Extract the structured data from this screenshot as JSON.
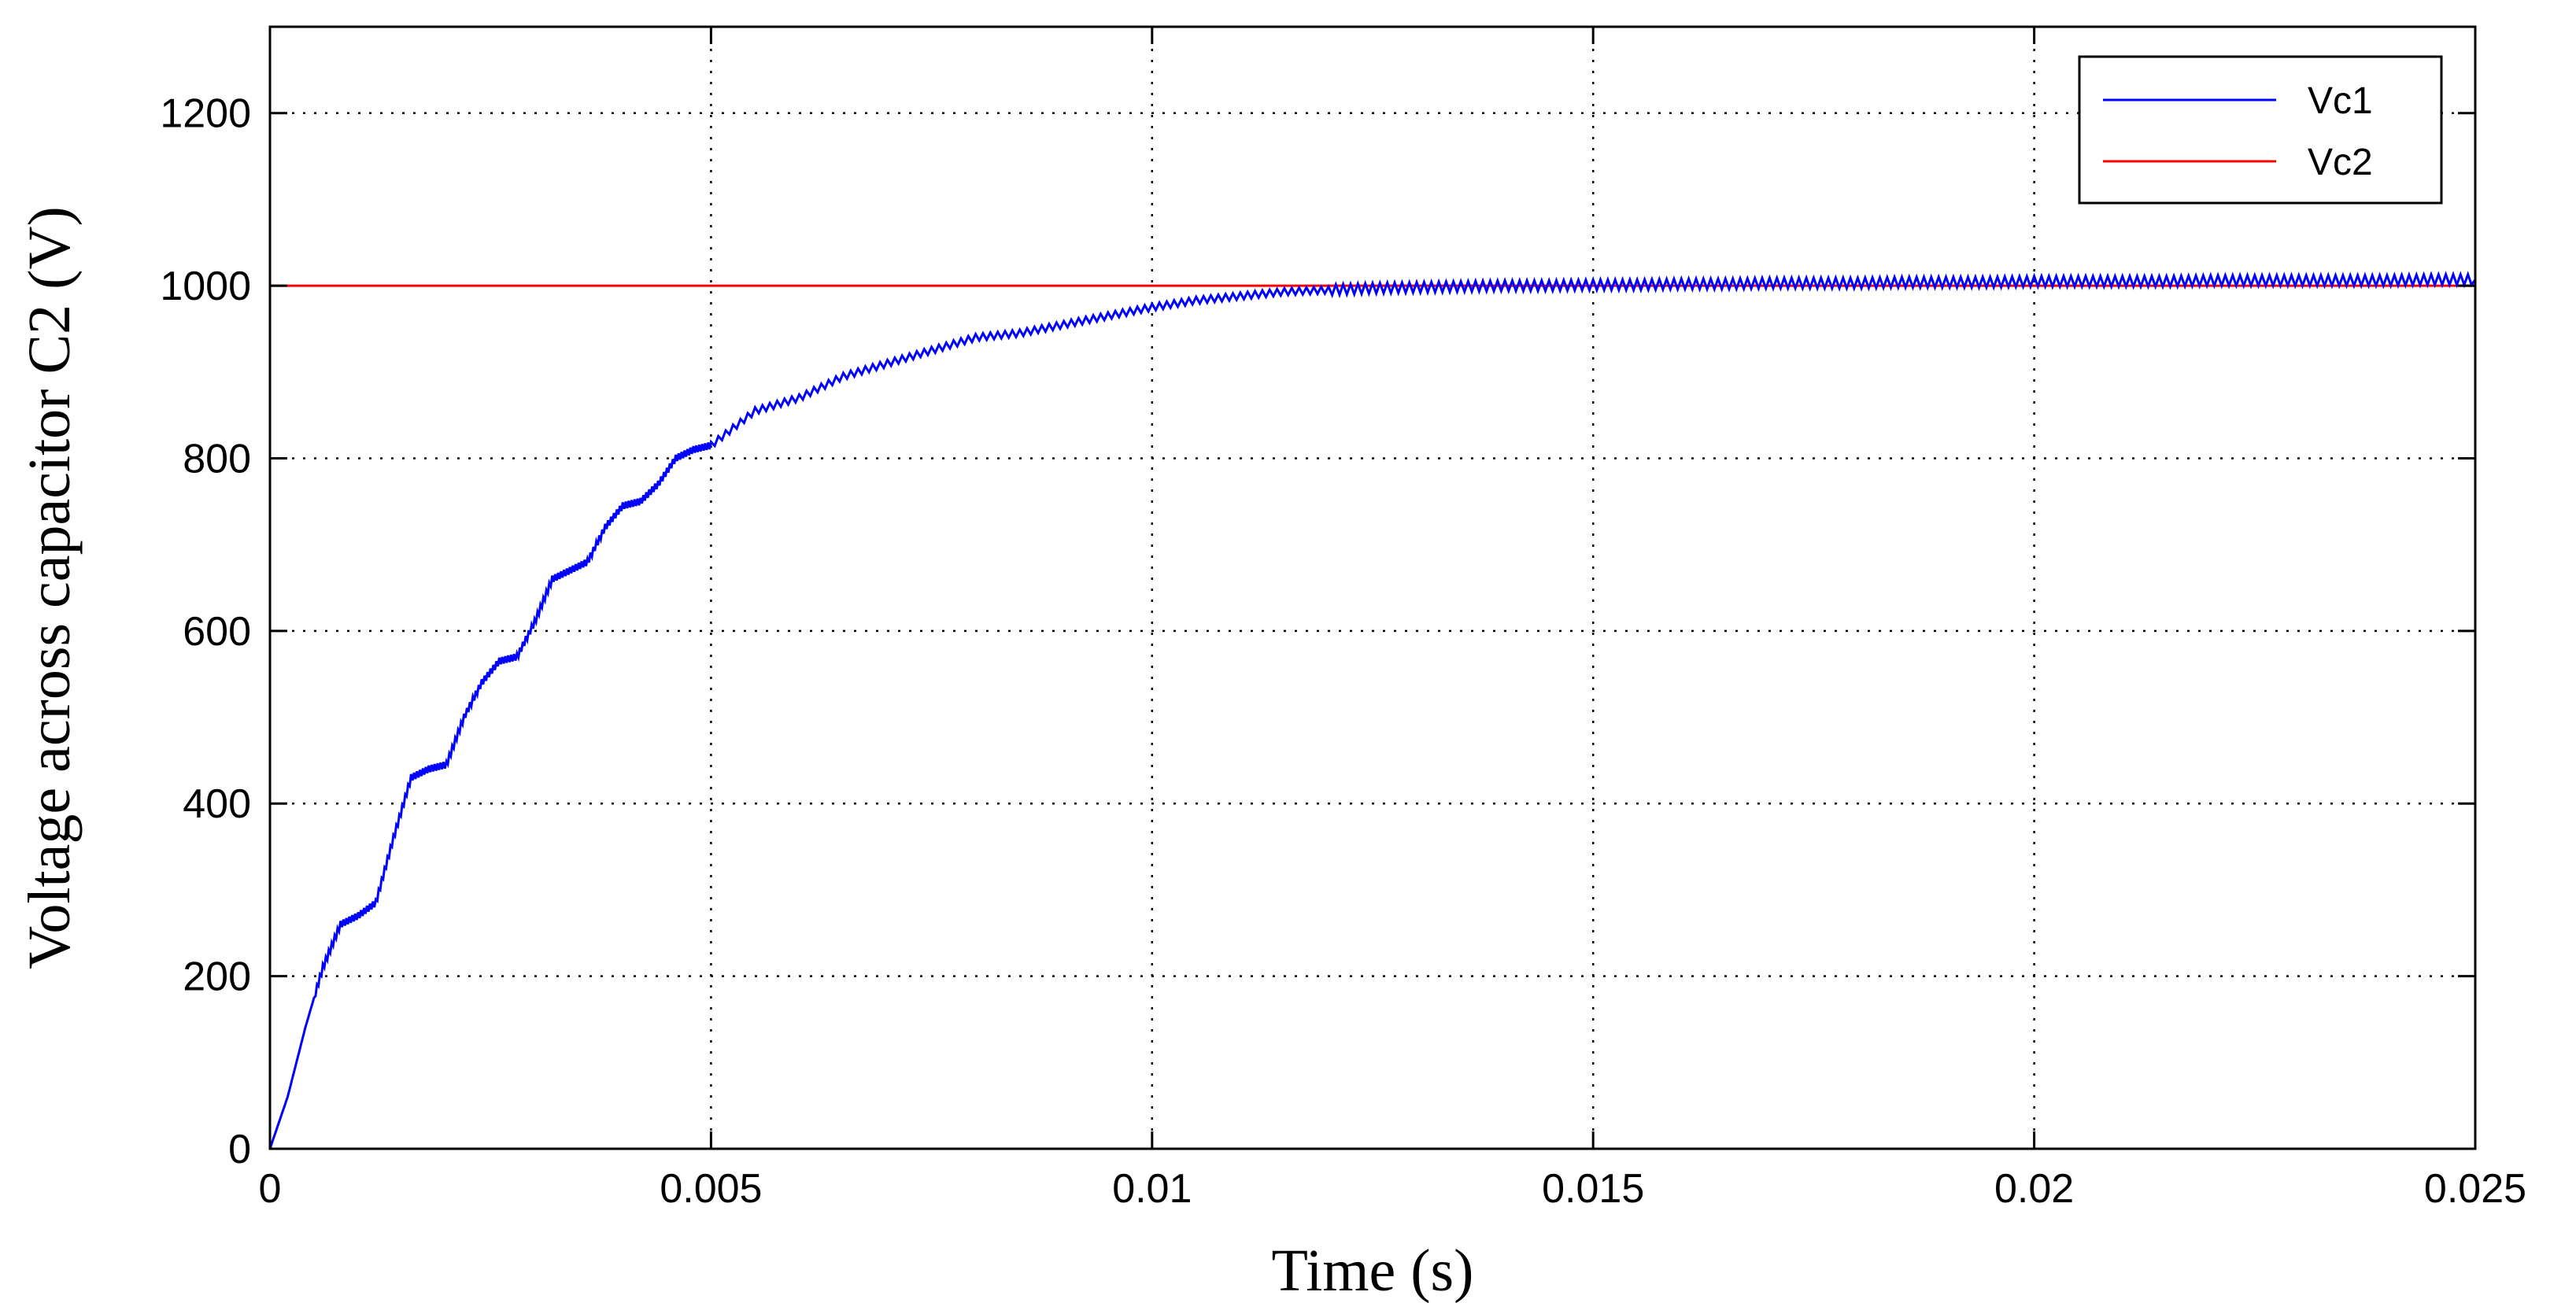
{
  "chart_data": {
    "type": "line",
    "title": "",
    "xlabel": "Time (s)",
    "ylabel": "Voltage across capacitor C2 (V)",
    "xlim": [
      0,
      0.025
    ],
    "ylim": [
      0,
      1300
    ],
    "xticks": [
      0,
      0.005,
      0.01,
      0.015,
      0.02,
      0.025
    ],
    "xtick_labels": [
      "0",
      "0.005",
      "0.01",
      "0.015",
      "0.02",
      "0.025"
    ],
    "yticks": [
      0,
      200,
      400,
      600,
      800,
      1000,
      1200
    ],
    "ytick_labels": [
      "0",
      "200",
      "400",
      "600",
      "800",
      "1000",
      "1200"
    ],
    "grid": true,
    "legend_position": "top-right",
    "series": [
      {
        "name": "Vc1",
        "color": "#0000ff",
        "x": [
          0,
          0.0002,
          0.0004,
          0.0006,
          0.0008,
          0.001,
          0.0012,
          0.0014,
          0.0016,
          0.0018,
          0.002,
          0.0022,
          0.0024,
          0.0026,
          0.0028,
          0.003,
          0.0032,
          0.0034,
          0.0036,
          0.0038,
          0.004,
          0.0042,
          0.0044,
          0.0046,
          0.0048,
          0.005,
          0.0055,
          0.006,
          0.0065,
          0.007,
          0.0075,
          0.008,
          0.0085,
          0.009,
          0.0095,
          0.01,
          0.0105,
          0.011,
          0.0115,
          0.012,
          0.0125,
          0.013,
          0.0135,
          0.014,
          0.0145,
          0.015,
          0.0155,
          0.016,
          0.0165,
          0.017,
          0.0175,
          0.018,
          0.0185,
          0.019,
          0.0195,
          0.02,
          0.0205,
          0.021,
          0.0215,
          0.022,
          0.0225,
          0.023,
          0.0235,
          0.024,
          0.0245,
          0.025
        ],
        "values": [
          0,
          60,
          140,
          210,
          260,
          270,
          285,
          360,
          430,
          440,
          445,
          500,
          540,
          565,
          570,
          610,
          660,
          670,
          680,
          720,
          745,
          750,
          770,
          800,
          810,
          815,
          855,
          870,
          895,
          910,
          925,
          940,
          945,
          955,
          965,
          975,
          983,
          988,
          993,
          995,
          997,
          998,
          999,
          1000,
          1000,
          1001,
          1001,
          1002,
          1002,
          1003,
          1003,
          1003,
          1004,
          1004,
          1004,
          1005,
          1005,
          1005,
          1005,
          1006,
          1006,
          1006,
          1006,
          1006,
          1007,
          1007
        ]
      },
      {
        "name": "Vc2",
        "color": "#ff0000",
        "x": [
          0,
          0.025
        ],
        "values": [
          1000,
          1000
        ]
      }
    ]
  }
}
